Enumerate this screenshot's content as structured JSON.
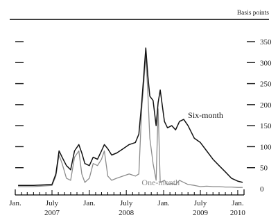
{
  "chart_data": {
    "type": "line",
    "unit_label": "Basis points",
    "ylim": [
      0,
      350
    ],
    "y_ticks": [
      0,
      50,
      100,
      150,
      200,
      250,
      300,
      350
    ],
    "x_range": [
      "2007-01-01",
      "2010-02-01"
    ],
    "x_tick_labels": [
      {
        "label": "Jan.",
        "date": "2007-01-01"
      },
      {
        "label": "July",
        "date": "2007-07-01"
      },
      {
        "label": "Jan.",
        "date": "2008-01-01"
      },
      {
        "label": "July",
        "date": "2008-07-01"
      },
      {
        "label": "Jan.",
        "date": "2009-01-01"
      },
      {
        "label": "July",
        "date": "2009-07-01"
      },
      {
        "label": "Jan.",
        "date": "2010-01-01"
      }
    ],
    "year_labels": [
      {
        "label": "2007",
        "date": "2007-07-01"
      },
      {
        "label": "2008",
        "date": "2008-07-01"
      },
      {
        "label": "2009",
        "date": "2009-07-01"
      },
      {
        "label": "2010",
        "date": "2010-01-01"
      }
    ],
    "grid": false,
    "series": [
      {
        "name": "Six-month",
        "color": "#111111",
        "x": [
          "2007-01-15",
          "2007-04-01",
          "2007-07-01",
          "2007-07-20",
          "2007-08-05",
          "2007-08-20",
          "2007-09-10",
          "2007-10-01",
          "2007-10-20",
          "2007-11-10",
          "2007-11-25",
          "2007-12-10",
          "2008-01-01",
          "2008-01-20",
          "2008-02-10",
          "2008-03-01",
          "2008-03-15",
          "2008-04-01",
          "2008-04-20",
          "2008-05-15",
          "2008-06-15",
          "2008-07-15",
          "2008-08-15",
          "2008-09-01",
          "2008-09-15",
          "2008-09-25",
          "2008-10-05",
          "2008-10-15",
          "2008-10-25",
          "2008-11-10",
          "2008-11-25",
          "2008-12-05",
          "2008-12-15",
          "2009-01-05",
          "2009-01-20",
          "2009-02-10",
          "2009-03-01",
          "2009-03-20",
          "2009-04-10",
          "2009-05-01",
          "2009-06-01",
          "2009-07-01",
          "2009-08-01",
          "2009-09-01",
          "2009-10-01",
          "2009-11-01",
          "2009-12-01",
          "2010-01-01",
          "2010-01-25"
        ],
        "values": [
          8,
          8,
          10,
          35,
          90,
          75,
          55,
          45,
          90,
          105,
          85,
          60,
          55,
          75,
          70,
          90,
          105,
          95,
          80,
          85,
          95,
          105,
          110,
          130,
          205,
          270,
          335,
          270,
          220,
          210,
          150,
          205,
          235,
          160,
          145,
          150,
          140,
          160,
          165,
          150,
          120,
          110,
          90,
          70,
          55,
          40,
          25,
          18,
          15
        ]
      },
      {
        "name": "One-month",
        "color": "#8c8c8c",
        "x": [
          "2007-01-15",
          "2007-04-01",
          "2007-07-01",
          "2007-07-20",
          "2007-08-05",
          "2007-08-20",
          "2007-09-10",
          "2007-10-01",
          "2007-10-20",
          "2007-11-10",
          "2007-11-25",
          "2007-12-10",
          "2008-01-01",
          "2008-01-20",
          "2008-02-10",
          "2008-03-01",
          "2008-03-15",
          "2008-04-01",
          "2008-04-20",
          "2008-05-15",
          "2008-06-15",
          "2008-07-15",
          "2008-08-15",
          "2008-09-01",
          "2008-09-15",
          "2008-09-25",
          "2008-10-05",
          "2008-10-15",
          "2008-10-25",
          "2008-11-10",
          "2008-11-25",
          "2008-12-05",
          "2008-12-15",
          "2009-01-05",
          "2009-01-20",
          "2009-02-10",
          "2009-03-01",
          "2009-03-20",
          "2009-04-10",
          "2009-05-01",
          "2009-06-01",
          "2009-07-01",
          "2009-08-01",
          "2009-09-01",
          "2009-10-01",
          "2009-11-01",
          "2009-12-01",
          "2010-01-01",
          "2010-01-25"
        ],
        "values": [
          5,
          5,
          8,
          30,
          80,
          60,
          25,
          20,
          75,
          90,
          35,
          15,
          25,
          60,
          55,
          70,
          90,
          30,
          20,
          25,
          30,
          35,
          30,
          35,
          190,
          250,
          320,
          230,
          120,
          60,
          20,
          190,
          15,
          20,
          10,
          12,
          10,
          20,
          15,
          10,
          8,
          5,
          6,
          5,
          5,
          4,
          4,
          3,
          3
        ]
      }
    ],
    "annotations": [
      {
        "text": "Six-month",
        "series": "Six-month",
        "date": "2009-05-01",
        "value": 168
      },
      {
        "text": "One-month",
        "series": "One-month",
        "date": "2008-09-15",
        "value": 8
      }
    ]
  }
}
